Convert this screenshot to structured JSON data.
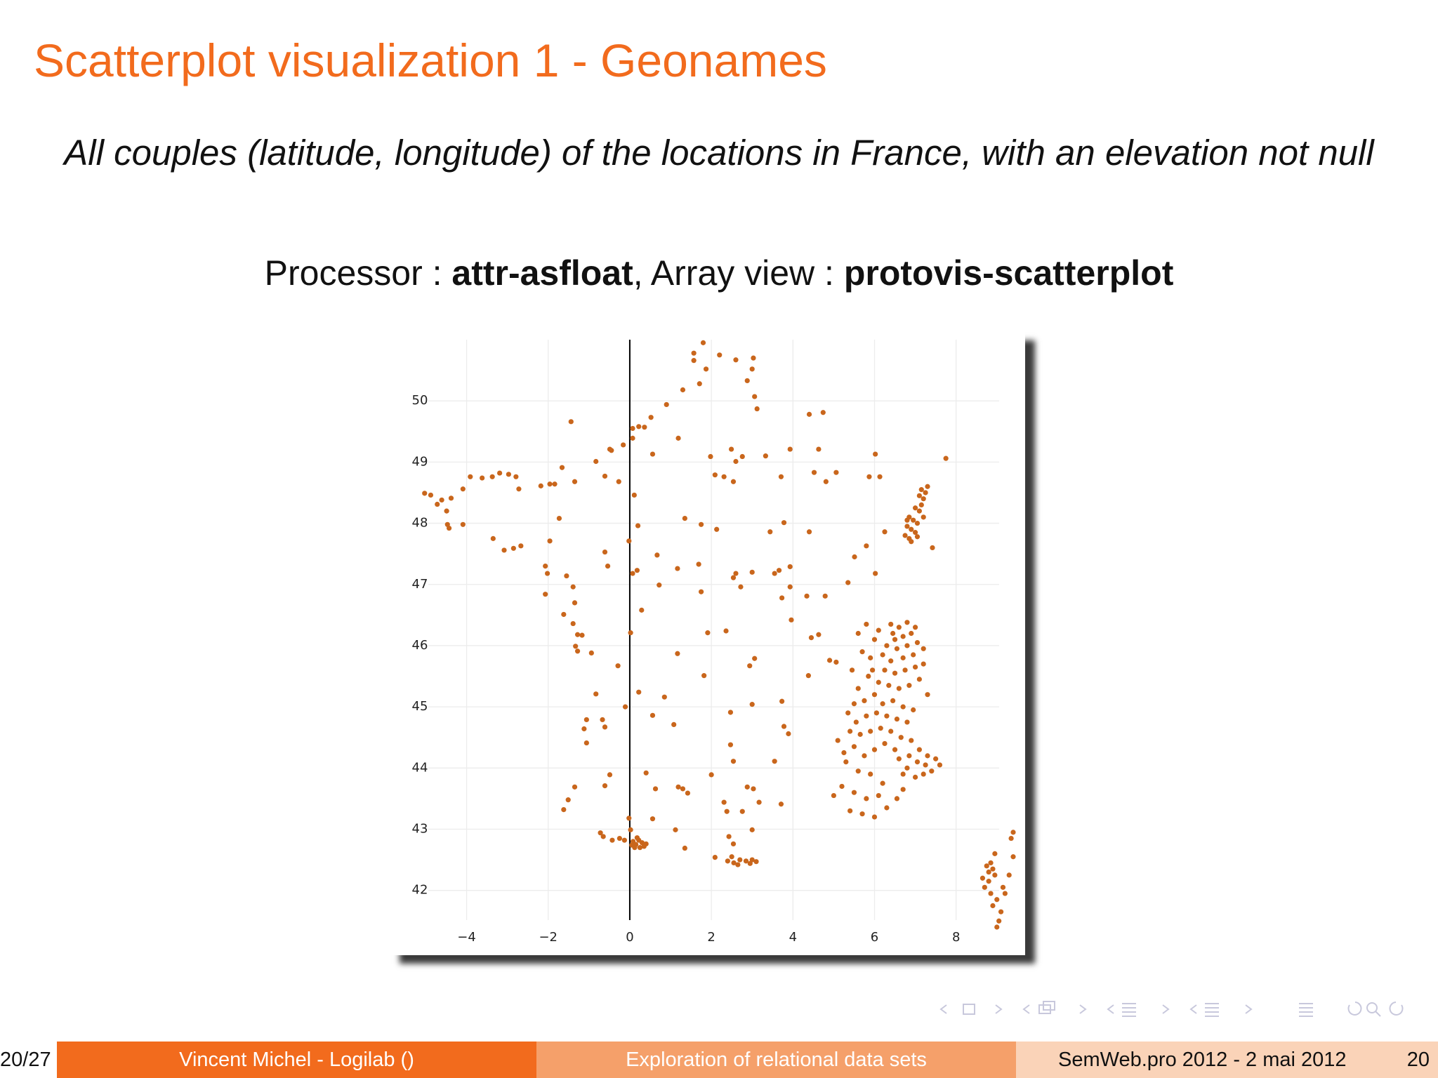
{
  "slide": {
    "title": "Scatterplot visualization 1 - Geonames",
    "subtitle": "All couples (latitude, longitude) of the locations in France, with an elevation not null",
    "processor_line": [
      {
        "text": "Processor : ",
        "bold": false
      },
      {
        "text": "attr-asfloat",
        "bold": true
      },
      {
        "text": ", Array view : ",
        "bold": false
      },
      {
        "text": "protovis-scatterplot",
        "bold": true
      }
    ]
  },
  "chart_data": {
    "type": "scatter",
    "color": "#c9661c",
    "grid": true,
    "xlim": [
      -5.8,
      9.4
    ],
    "ylim": [
      41.4,
      51.0
    ],
    "xticks": [
      {
        "value": -4,
        "label": "−4"
      },
      {
        "value": -2,
        "label": "−2"
      },
      0,
      2,
      4,
      6,
      8
    ],
    "yticks": [
      42,
      43,
      44,
      45,
      46,
      47,
      48,
      49,
      50
    ],
    "x": [
      1.8,
      1.57,
      1.57,
      1.87,
      2.2,
      2.6,
      3.03,
      3.0,
      2.88,
      3.06,
      3.12,
      1.71,
      1.3,
      0.9,
      0.52,
      0.22,
      0.07,
      0.07,
      0.36,
      -0.16,
      -0.45,
      -0.83,
      -1.44,
      -0.61,
      -0.27,
      -1.66,
      -1.35,
      -1.96,
      -2.18,
      -1.84,
      -2.79,
      -2.72,
      -2.97,
      -3.19,
      -3.37,
      -3.62,
      -3.91,
      -4.09,
      -4.38,
      -4.61,
      -4.72,
      -4.49,
      -4.88,
      -5.03,
      -4.43,
      -4.47,
      -4.09,
      -3.35,
      -3.08,
      -2.85,
      -2.67,
      -1.73,
      -1.96,
      -2.07,
      -2.02,
      -2.07,
      -1.55,
      -1.39,
      -1.35,
      -1.62,
      -1.39,
      -1.28,
      -1.17,
      -1.33,
      -1.28,
      -0.94,
      -0.83,
      -1.06,
      -1.12,
      -1.06,
      -0.67,
      -0.61,
      -0.49,
      -0.61,
      -1.35,
      -1.51,
      -1.62,
      -0.72,
      -0.65,
      -0.43,
      -0.25,
      -0.13,
      -0.02,
      0.02,
      0.08,
      0.15,
      0.22,
      0.3,
      0.35,
      0.12,
      0.25,
      0.4,
      0.18,
      0.05,
      -0.11,
      -0.29,
      0.02,
      0.07,
      0.18,
      -0.02,
      0.2,
      0.11,
      -0.61,
      -0.54,
      0.29,
      0.67,
      0.72,
      1.17,
      1.35,
      1.75,
      2.13,
      1.69,
      1.75,
      1.17,
      1.82,
      1.91,
      2.36,
      2.54,
      2.6,
      2.72,
      3.0,
      3.55,
      3.66,
      3.44,
      3.78,
      3.93,
      3.93,
      3.73,
      3.96,
      4.34,
      4.79,
      4.45,
      4.63,
      4.9,
      5.06,
      4.38,
      3.73,
      3.78,
      3.89,
      3.55,
      3.0,
      3.06,
      2.94,
      2.47,
      2.47,
      2.54,
      2.0,
      1.3,
      1.42,
      1.19,
      0.85,
      0.56,
      1.08,
      0.22,
      0.4,
      0.63,
      0.56,
      1.12,
      1.35,
      2.09,
      2.43,
      2.54,
      3.0,
      2.31,
      2.38,
      2.76,
      2.88,
      3.03,
      3.17,
      3.71,
      1.98,
      2.09,
      2.49,
      2.6,
      2.76,
      2.31,
      2.54,
      3.33,
      3.93,
      3.71,
      4.4,
      4.74,
      4.63,
      4.52,
      4.81,
      5.06,
      5.87,
      6.02,
      6.13,
      6.25,
      5.8,
      6.02,
      5.51,
      5.35,
      7.75,
      7.42,
      4.4,
      1.19,
      0.56,
      -0.49,
      2.4,
      2.55,
      2.7,
      2.85,
      3.0,
      3.1,
      2.5,
      2.65,
      2.95,
      6.75,
      6.85,
      6.9,
      6.8,
      7.0,
      7.05,
      6.95,
      6.85,
      7.1,
      7.15,
      7.0,
      7.2,
      7.25,
      7.3,
      7.1,
      7.2,
      6.9,
      7.05,
      6.8,
      7.15,
      6.4,
      6.6,
      6.8,
      7.0,
      6.9,
      6.7,
      6.5,
      6.3,
      6.55,
      6.8,
      7.05,
      7.2,
      6.95,
      6.7,
      6.4,
      6.2,
      5.9,
      5.7,
      5.6,
      5.8,
      6.1,
      6.25,
      6.5,
      6.75,
      7.0,
      7.1,
      6.85,
      6.6,
      6.35,
      6.1,
      5.85,
      5.6,
      5.5,
      5.75,
      6.0,
      6.2,
      6.45,
      6.7,
      6.95,
      6.8,
      6.55,
      6.3,
      6.05,
      5.8,
      5.55,
      5.35,
      5.4,
      5.65,
      5.9,
      6.15,
      6.4,
      6.65,
      6.9,
      7.1,
      7.3,
      7.5,
      7.6,
      7.4,
      7.2,
      7.0,
      6.8,
      6.6,
      6.85,
      7.05,
      7.25,
      6.7,
      6.5,
      6.25,
      6.0,
      5.75,
      5.5,
      5.25,
      5.1,
      5.3,
      5.6,
      5.9,
      6.2,
      6.1,
      5.8,
      5.5,
      5.2,
      5.0,
      5.4,
      5.7,
      6.0,
      6.3,
      6.55,
      6.7,
      7.3,
      7.2,
      6.0,
      5.95,
      5.45,
      6.45,
      8.75,
      8.8,
      8.85,
      8.9,
      8.95,
      8.8,
      8.7,
      8.85,
      9.0,
      8.9,
      9.1,
      9.05,
      9.0,
      9.2,
      9.3,
      9.4,
      9.35,
      9.4,
      8.65,
      9.15,
      8.95
    ],
    "values": [
      50.95,
      50.78,
      50.66,
      50.52,
      50.75,
      50.67,
      50.7,
      50.52,
      50.33,
      50.07,
      49.87,
      50.28,
      50.18,
      49.94,
      49.73,
      49.58,
      49.55,
      49.39,
      49.57,
      49.28,
      49.19,
      49.01,
      49.66,
      48.77,
      48.68,
      48.91,
      48.68,
      48.64,
      48.61,
      48.64,
      48.76,
      48.56,
      48.8,
      48.82,
      48.76,
      48.74,
      48.76,
      48.56,
      48.41,
      48.38,
      48.31,
      48.2,
      48.46,
      48.49,
      47.92,
      47.98,
      47.98,
      47.75,
      47.56,
      47.59,
      47.63,
      48.08,
      47.71,
      47.3,
      47.18,
      46.84,
      47.14,
      46.96,
      46.7,
      46.51,
      46.36,
      46.18,
      46.17,
      45.99,
      45.91,
      45.88,
      45.21,
      44.79,
      44.64,
      44.41,
      44.79,
      44.67,
      43.89,
      43.71,
      43.69,
      43.48,
      43.32,
      42.94,
      42.88,
      42.82,
      42.85,
      42.82,
      43.18,
      42.99,
      42.8,
      42.75,
      42.82,
      42.78,
      42.72,
      42.7,
      42.7,
      42.76,
      42.86,
      42.74,
      45.0,
      45.67,
      46.21,
      47.18,
      47.23,
      47.71,
      47.96,
      48.46,
      47.53,
      47.3,
      46.58,
      47.48,
      46.99,
      47.26,
      48.08,
      47.98,
      47.9,
      47.33,
      46.88,
      45.87,
      45.51,
      46.21,
      46.24,
      47.11,
      47.18,
      46.96,
      47.2,
      47.18,
      47.23,
      47.86,
      48.01,
      47.29,
      46.96,
      46.78,
      46.42,
      46.81,
      46.81,
      46.13,
      46.18,
      45.76,
      45.73,
      45.51,
      45.09,
      44.68,
      44.56,
      44.11,
      45.04,
      45.79,
      45.67,
      44.91,
      44.38,
      44.11,
      43.89,
      43.66,
      43.59,
      43.69,
      45.16,
      44.86,
      44.71,
      45.24,
      43.92,
      43.66,
      43.17,
      42.99,
      42.69,
      42.54,
      42.88,
      42.76,
      42.99,
      43.44,
      43.29,
      43.29,
      43.69,
      43.66,
      43.44,
      43.41,
      49.09,
      48.79,
      49.21,
      49.01,
      49.09,
      48.76,
      48.68,
      49.1,
      49.21,
      48.76,
      49.78,
      49.81,
      49.21,
      48.83,
      48.68,
      48.83,
      48.76,
      49.13,
      48.76,
      47.86,
      47.63,
      47.18,
      47.45,
      47.03,
      49.06,
      47.6,
      47.86,
      49.39,
      49.13,
      49.21,
      42.48,
      42.45,
      42.5,
      42.48,
      42.5,
      42.47,
      42.55,
      42.42,
      42.44,
      47.8,
      47.75,
      47.9,
      47.95,
      47.85,
      48.0,
      48.05,
      48.1,
      48.2,
      48.3,
      48.25,
      48.4,
      48.5,
      48.6,
      48.45,
      48.1,
      47.7,
      47.78,
      48.05,
      48.55,
      46.35,
      46.3,
      46.38,
      46.3,
      46.2,
      46.15,
      46.1,
      46.0,
      45.95,
      46.0,
      46.05,
      45.95,
      45.85,
      45.8,
      45.75,
      45.85,
      45.8,
      45.9,
      46.2,
      46.35,
      46.25,
      45.6,
      45.55,
      45.6,
      45.65,
      45.45,
      45.35,
      45.3,
      45.35,
      45.4,
      45.5,
      45.3,
      45.05,
      45.1,
      45.2,
      45.05,
      45.1,
      45.0,
      44.95,
      44.75,
      44.8,
      44.85,
      44.9,
      44.85,
      44.75,
      44.9,
      44.6,
      44.55,
      44.6,
      44.65,
      44.6,
      44.5,
      44.45,
      44.3,
      44.2,
      44.15,
      44.05,
      43.95,
      43.9,
      43.85,
      44.0,
      44.15,
      44.2,
      44.1,
      44.05,
      43.9,
      44.3,
      44.4,
      44.3,
      44.2,
      44.35,
      44.25,
      44.45,
      44.1,
      43.95,
      43.9,
      43.75,
      43.55,
      43.5,
      43.6,
      43.7,
      43.55,
      43.3,
      43.25,
      43.2,
      43.35,
      43.5,
      43.65,
      45.2,
      45.7,
      46.1,
      45.6,
      45.6,
      46.2,
      42.4,
      42.3,
      42.45,
      42.35,
      42.25,
      42.15,
      42.05,
      41.95,
      41.85,
      41.75,
      41.65,
      41.5,
      41.4,
      41.95,
      42.25,
      42.55,
      42.85,
      42.95,
      42.2,
      42.05,
      42.6
    ]
  },
  "footer": {
    "page_fraction": "20/27",
    "author": "Vincent Michel - Logilab  ()",
    "talk": "Exploration of relational data sets",
    "event": "SemWeb.pro 2012 - 2 mai 2012",
    "page": "20"
  }
}
